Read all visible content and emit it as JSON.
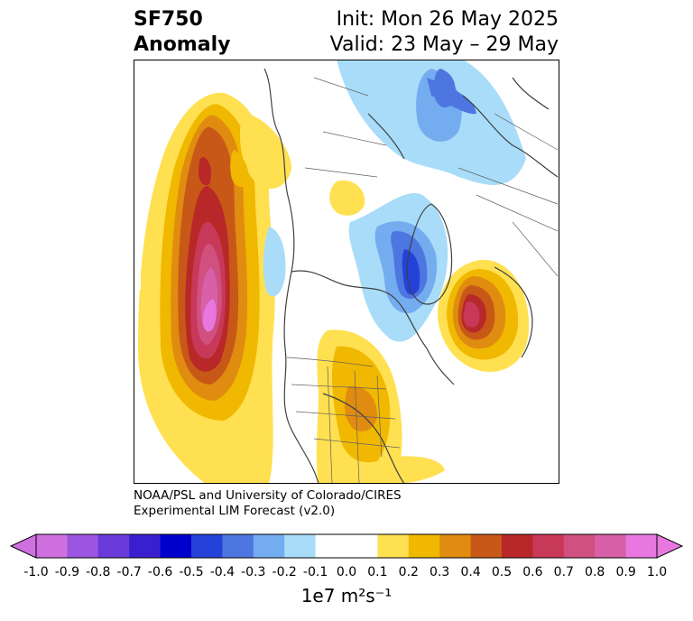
{
  "title": {
    "line1": "SF750",
    "line2": "Anomaly",
    "init": "Init: Mon 26 May 2025",
    "valid": "Valid: 23 May – 29 May"
  },
  "credit": {
    "line1": "NOAA/PSL and University of Colorado/CIRES",
    "line2": "Experimental LIM Forecast (v2.0)"
  },
  "colorbar": {
    "units": "1e7 m²s⁻¹",
    "ticks": [
      "-1.0",
      "-0.9",
      "-0.8",
      "-0.7",
      "-0.6",
      "-0.5",
      "-0.4",
      "-0.3",
      "-0.2",
      "-0.1",
      "0.0",
      "0.1",
      "0.2",
      "0.3",
      "0.4",
      "0.5",
      "0.6",
      "0.7",
      "0.8",
      "0.9",
      "1.0"
    ],
    "under_color": "#d070e0",
    "over_color": "#e878e0",
    "colors": [
      "#d070e0",
      "#9b55e0",
      "#6a3ad8",
      "#3a1fd0",
      "#0000cc",
      "#2542d8",
      "#4d76e0",
      "#74acf0",
      "#a8dcf8",
      "#ffffff",
      "#ffffff",
      "#ffe050",
      "#f0b800",
      "#e08c10",
      "#c85818",
      "#b82828",
      "#c83858",
      "#d05080",
      "#d860a8",
      "#e878e0"
    ]
  }
}
